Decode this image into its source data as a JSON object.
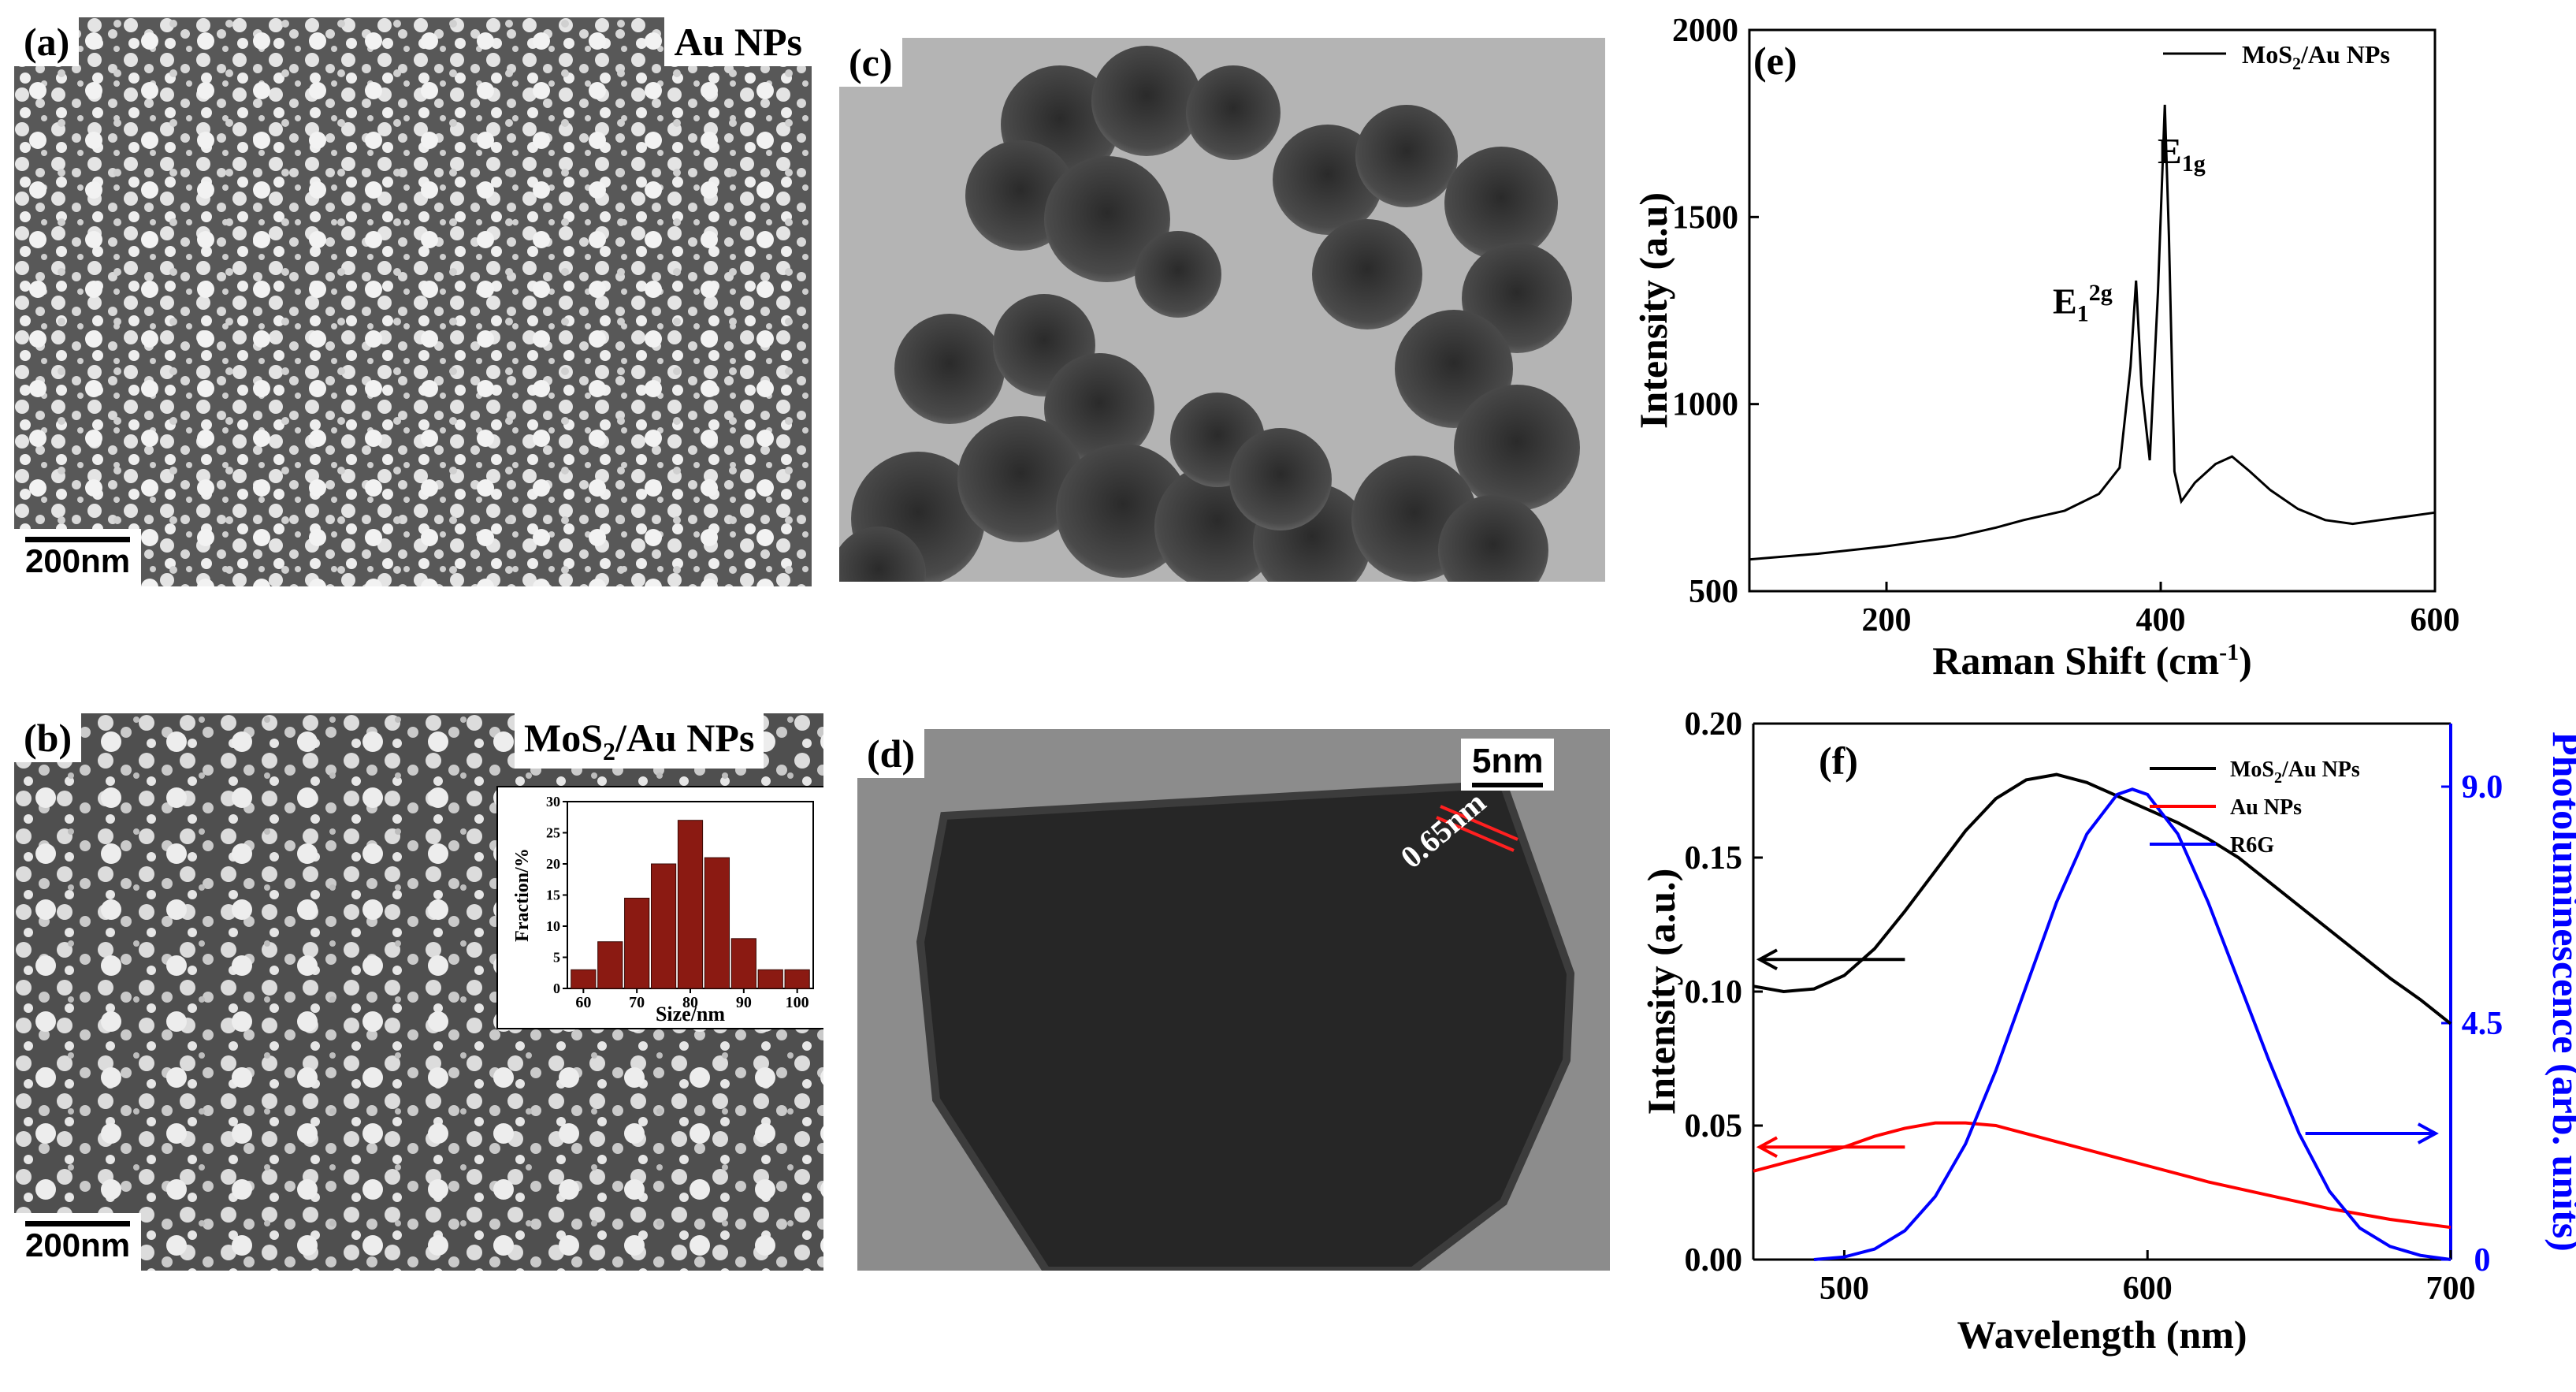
{
  "panels": {
    "a": {
      "tag": "(a)",
      "title": "Au NPs",
      "scale_bar": "200nm"
    },
    "b": {
      "tag": "(b)",
      "title_main": "MoS",
      "title_sub": "2",
      "title_tail": "/Au NPs",
      "scale_bar": "200nm",
      "inset": {
        "ylabel": "Fraction/%",
        "xlabel": "Size/nm"
      }
    },
    "c": {
      "tag": "(c)"
    },
    "d": {
      "tag": "(d)",
      "scale_bar": "5nm",
      "lattice_label": "0.65nm"
    },
    "e": {
      "tag": "(e)",
      "peak_left_main": "E",
      "peak_left_sub": "1",
      "peak_left_sup": "2g",
      "peak_right_main": "E",
      "peak_right_sub": "1g"
    },
    "f": {
      "tag": "(f)"
    }
  },
  "chart_data": [
    {
      "id": "inset-histogram",
      "type": "bar",
      "xlabel": "Size/nm",
      "ylabel": "Fraction/%",
      "categories": [
        60,
        65,
        70,
        75,
        80,
        85,
        90,
        95,
        100
      ],
      "values": [
        3,
        7.5,
        14.5,
        20,
        27,
        21,
        8,
        3,
        3
      ],
      "xticks": [
        "60",
        "70",
        "80",
        "90",
        "100"
      ],
      "yticks": [
        "0",
        "5",
        "10",
        "15",
        "20",
        "25",
        "30"
      ],
      "ylim": [
        0,
        30
      ],
      "xlim": [
        57,
        103
      ],
      "bar_color": "#8b1a12"
    },
    {
      "id": "raman",
      "type": "line",
      "xlabel": "Raman Shift (cm",
      "xlabel_sup": "-1",
      "xlabel_tail": ")",
      "ylabel": "Intensity (a.u)",
      "xlim": [
        100,
        600
      ],
      "ylim": [
        500,
        2000
      ],
      "xticks": [
        "200",
        "400",
        "600"
      ],
      "yticks": [
        "500",
        "1000",
        "1500",
        "2000"
      ],
      "legend": {
        "main": "MoS",
        "sub": "2",
        "tail": "/Au NPs"
      },
      "series": [
        {
          "name": "MoS2/Au NPs",
          "color": "#000000",
          "x": [
            100,
            150,
            200,
            250,
            280,
            300,
            330,
            355,
            370,
            378,
            382,
            386,
            392,
            398,
            403,
            406,
            410,
            415,
            425,
            440,
            452,
            465,
            480,
            500,
            520,
            540,
            560,
            580,
            600
          ],
          "y": [
            585,
            600,
            620,
            645,
            670,
            690,
            715,
            760,
            830,
            1100,
            1330,
            1050,
            850,
            1300,
            1800,
            1450,
            820,
            740,
            790,
            840,
            860,
            820,
            770,
            720,
            690,
            680,
            690,
            700,
            710
          ]
        }
      ]
    },
    {
      "id": "absorption-pl",
      "type": "line",
      "xlabel": "Wavelength (nm)",
      "ylabel": "Intensity  (a.u.)",
      "ylabel_right": "Photoluminescence (arb. units)",
      "xlim": [
        470,
        700
      ],
      "ylim": [
        0,
        0.2
      ],
      "ylim_right": [
        0,
        10.2
      ],
      "xticks": [
        "500",
        "600",
        "700"
      ],
      "yticks": [
        "0.00",
        "0.05",
        "0.10",
        "0.15",
        "0.20"
      ],
      "yticks_right": [
        "0",
        "4.5",
        "9.0"
      ],
      "legend": [
        {
          "main": "MoS",
          "sub": "2",
          "tail": "/Au NPs",
          "color": "#000000"
        },
        {
          "main": "Au NPs",
          "sub": "",
          "tail": "",
          "color": "#ff0000"
        },
        {
          "main": "R6G",
          "sub": "",
          "tail": "",
          "color": "#0000ff"
        }
      ],
      "series": [
        {
          "name": "MoS2/Au NPs",
          "axis": "left",
          "color": "#000000",
          "x": [
            470,
            480,
            490,
            500,
            510,
            520,
            530,
            540,
            550,
            560,
            570,
            580,
            590,
            600,
            610,
            620,
            630,
            640,
            650,
            660,
            670,
            680,
            690,
            700
          ],
          "y": [
            0.102,
            0.1,
            0.101,
            0.106,
            0.116,
            0.13,
            0.145,
            0.16,
            0.172,
            0.179,
            0.181,
            0.178,
            0.173,
            0.168,
            0.163,
            0.157,
            0.15,
            0.141,
            0.132,
            0.123,
            0.114,
            0.105,
            0.097,
            0.088
          ]
        },
        {
          "name": "Au NPs",
          "axis": "left",
          "color": "#ff0000",
          "x": [
            470,
            480,
            490,
            500,
            510,
            520,
            530,
            540,
            550,
            560,
            570,
            580,
            590,
            600,
            620,
            640,
            660,
            680,
            700
          ],
          "y": [
            0.033,
            0.036,
            0.039,
            0.042,
            0.046,
            0.049,
            0.051,
            0.051,
            0.05,
            0.047,
            0.044,
            0.041,
            0.038,
            0.035,
            0.029,
            0.024,
            0.019,
            0.015,
            0.012
          ]
        },
        {
          "name": "R6G",
          "axis": "right",
          "color": "#0000ff",
          "x": [
            490,
            500,
            510,
            520,
            530,
            540,
            550,
            560,
            570,
            580,
            590,
            595,
            600,
            610,
            620,
            630,
            640,
            650,
            660,
            670,
            680,
            690,
            700
          ],
          "y": [
            0,
            0.05,
            0.2,
            0.55,
            1.2,
            2.2,
            3.6,
            5.2,
            6.8,
            8.1,
            8.85,
            8.95,
            8.85,
            8.1,
            6.8,
            5.3,
            3.8,
            2.4,
            1.3,
            0.6,
            0.25,
            0.08,
            0
          ]
        }
      ],
      "arrows": [
        {
          "axis": "left",
          "series": "MoS2/Au NPs",
          "direction": "left",
          "x": [
            470,
            520
          ],
          "y": 0.112
        },
        {
          "axis": "left",
          "series": "Au NPs",
          "direction": "left",
          "x": [
            470,
            520
          ],
          "y": 0.042
        },
        {
          "axis": "right",
          "series": "R6G",
          "direction": "right",
          "x": [
            650,
            695
          ],
          "y": 2.4
        }
      ]
    }
  ]
}
